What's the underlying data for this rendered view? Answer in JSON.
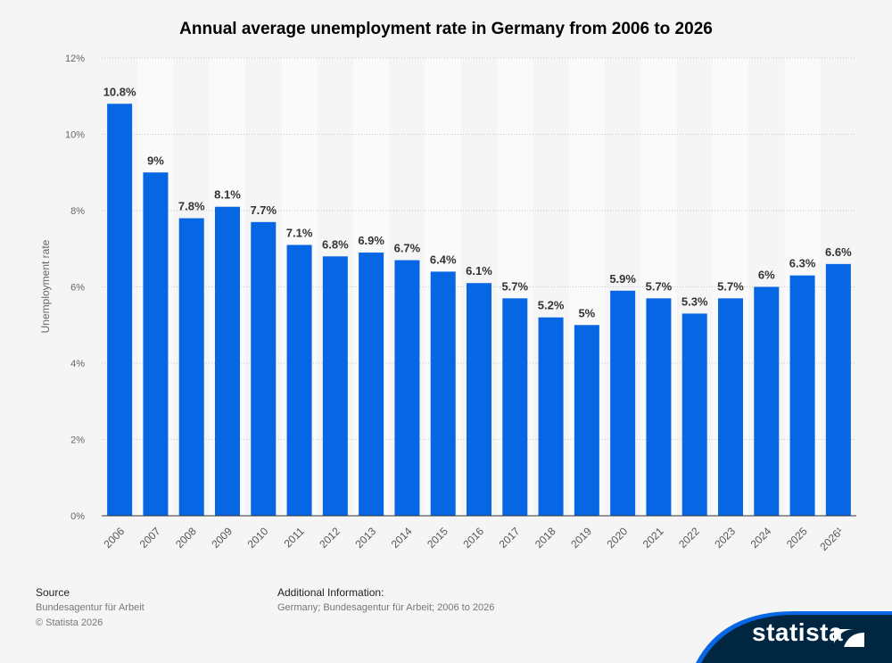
{
  "chart_data": {
    "type": "bar",
    "title": "Annual average unemployment rate in Germany from 2006 to 2026",
    "xlabel": "",
    "ylabel": "Unemployment rate",
    "categories": [
      "2006",
      "2007",
      "2008",
      "2009",
      "2010",
      "2011",
      "2012",
      "2013",
      "2014",
      "2015",
      "2016",
      "2017",
      "2018",
      "2019",
      "2020",
      "2021",
      "2022",
      "2023",
      "2024",
      "2025",
      "2026¹"
    ],
    "values": [
      10.8,
      9,
      7.8,
      8.1,
      7.7,
      7.1,
      6.8,
      6.9,
      6.7,
      6.4,
      6.1,
      5.7,
      5.2,
      5,
      5.9,
      5.7,
      5.3,
      5.7,
      6,
      6.3,
      6.6
    ],
    "data_labels": [
      "10.8%",
      "9%",
      "7.8%",
      "8.1%",
      "7.7%",
      "7.1%",
      "6.8%",
      "6.9%",
      "6.7%",
      "6.4%",
      "6.1%",
      "5.7%",
      "5.2%",
      "5%",
      "5.9%",
      "5.7%",
      "5.3%",
      "5.7%",
      "6%",
      "6.3%",
      "6.6%"
    ],
    "ylim": [
      0,
      12
    ],
    "yticks": [
      "0%",
      "2%",
      "4%",
      "6%",
      "8%",
      "10%",
      "12%"
    ],
    "grid": true,
    "colors": {
      "bar": "#0766e3",
      "text": "#333333"
    }
  },
  "footer": {
    "source_heading": "Source",
    "source_text": "Bundesagentur für Arbeit",
    "copyright": "© Statista 2026",
    "info_heading": "Additional Information:",
    "info_text": "Germany; Bundesagentur für Arbeit; 2006 to 2026"
  },
  "logo": {
    "text": "statista",
    "colors": {
      "banner": "#002642",
      "accent": "#0766e3"
    }
  }
}
